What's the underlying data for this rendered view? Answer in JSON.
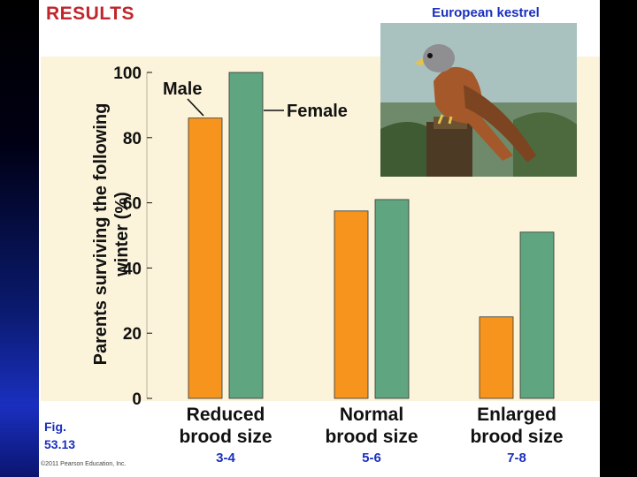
{
  "heading": "RESULTS",
  "photo": {
    "caption": "European kestrel",
    "icon": "kestrel-photo"
  },
  "figure_label": [
    "Fig.",
    "53.13"
  ],
  "copyright": "©2011 Pearson Education, Inc.",
  "brood_numbers": [
    "3-4",
    "5-6",
    "7-8"
  ],
  "colors": {
    "male": "#f7941d",
    "female": "#5fa57f",
    "heading": "#c0262c",
    "accent_text": "#1a2fbf",
    "plot_bg": "#fbf3da"
  },
  "chart_data": {
    "type": "bar",
    "ylabel": [
      "Parents surviving the following",
      "winter (%)"
    ],
    "ylim": [
      0,
      100
    ],
    "yticks": [
      0,
      20,
      40,
      60,
      80,
      100
    ],
    "categories": [
      [
        "Reduced",
        "brood size"
      ],
      [
        "Normal",
        "brood size"
      ],
      [
        "Enlarged",
        "brood size"
      ]
    ],
    "series": [
      {
        "name": "Male",
        "values": [
          86,
          57.5,
          25
        ]
      },
      {
        "name": "Female",
        "values": [
          100,
          61,
          51
        ]
      }
    ]
  }
}
